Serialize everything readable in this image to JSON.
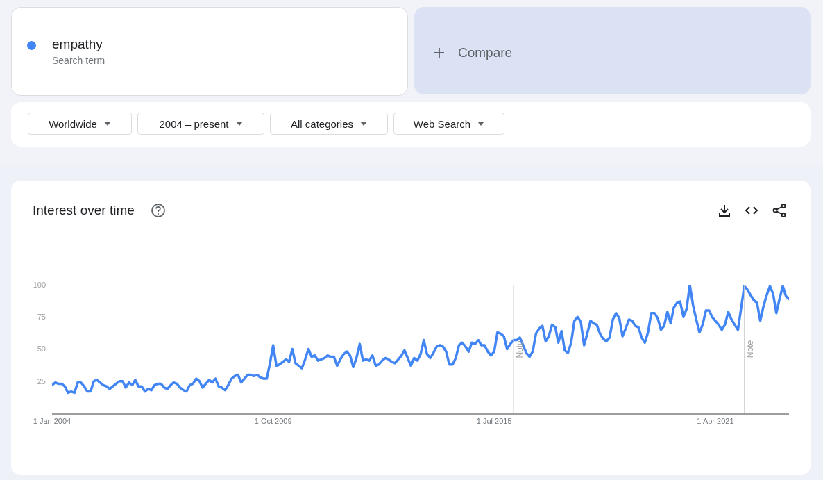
{
  "chart_data": {
    "type": "line",
    "title": "Interest over time",
    "annotations": [
      "Search term",
      "Compare",
      "Worldwide",
      "2004 – present",
      "All categories",
      "Web Search"
    ],
    "legend": "top left",
    "grid": "y",
    "marker": "none",
    "line_style": "solid",
    "xlim": [
      "2004-01-01",
      "2023-03-01"
    ],
    "xticks": [
      {
        "value": "2004-01-01",
        "label": "1 Jan 2004"
      },
      {
        "value": "2009-10-01",
        "label": "1 Oct 2009"
      },
      {
        "value": "2015-07-01",
        "label": "1 Jul 2015"
      },
      {
        "value": "2021-04-01",
        "label": "1 Apr 2021"
      }
    ],
    "ylim": [
      0,
      100
    ],
    "yticks": [
      25,
      50,
      75,
      100
    ],
    "ref_lines": [
      {
        "axis": "x",
        "value": "2016-01-01",
        "label": "Note",
        "color": "#cccccc"
      },
      {
        "axis": "x",
        "value": "2022-01-01",
        "label": "Note",
        "color": "#cccccc"
      }
    ],
    "x": [
      "2004-01",
      "2004-02",
      "2004-03",
      "2004-04",
      "2004-05",
      "2004-06",
      "2004-07",
      "2004-08",
      "2004-09",
      "2004-10",
      "2004-11",
      "2004-12",
      "2005-01",
      "2005-02",
      "2005-03",
      "2005-04",
      "2005-05",
      "2005-06",
      "2005-07",
      "2005-08",
      "2005-09",
      "2005-10",
      "2005-11",
      "2005-12",
      "2006-01",
      "2006-02",
      "2006-03",
      "2006-04",
      "2006-05",
      "2006-06",
      "2006-07",
      "2006-08",
      "2006-09",
      "2006-10",
      "2006-11",
      "2006-12",
      "2007-01",
      "2007-02",
      "2007-03",
      "2007-04",
      "2007-05",
      "2007-06",
      "2007-07",
      "2007-08",
      "2007-09",
      "2007-10",
      "2007-11",
      "2007-12",
      "2008-01",
      "2008-02",
      "2008-03",
      "2008-04",
      "2008-05",
      "2008-06",
      "2008-07",
      "2008-08",
      "2008-09",
      "2008-10",
      "2008-11",
      "2008-12",
      "2009-01",
      "2009-02",
      "2009-03",
      "2009-04",
      "2009-05",
      "2009-06",
      "2009-07",
      "2009-08",
      "2009-09",
      "2009-10",
      "2009-11",
      "2009-12",
      "2010-01",
      "2010-02",
      "2010-03",
      "2010-04",
      "2010-05",
      "2010-06",
      "2010-07",
      "2010-08",
      "2010-09",
      "2010-10",
      "2010-11",
      "2010-12",
      "2011-01",
      "2011-02",
      "2011-03",
      "2011-04",
      "2011-05",
      "2011-06",
      "2011-07",
      "2011-08",
      "2011-09",
      "2011-10",
      "2011-11",
      "2011-12",
      "2012-01",
      "2012-02",
      "2012-03",
      "2012-04",
      "2012-05",
      "2012-06",
      "2012-07",
      "2012-08",
      "2012-09",
      "2012-10",
      "2012-11",
      "2012-12",
      "2013-01",
      "2013-02",
      "2013-03",
      "2013-04",
      "2013-05",
      "2013-06",
      "2013-07",
      "2013-08",
      "2013-09",
      "2013-10",
      "2013-11",
      "2013-12",
      "2014-01",
      "2014-02",
      "2014-03",
      "2014-04",
      "2014-05",
      "2014-06",
      "2014-07",
      "2014-08",
      "2014-09",
      "2014-10",
      "2014-11",
      "2014-12",
      "2015-01",
      "2015-02",
      "2015-03",
      "2015-04",
      "2015-05",
      "2015-06",
      "2015-07",
      "2015-08",
      "2015-09",
      "2015-10",
      "2015-11",
      "2015-12",
      "2016-01",
      "2016-02",
      "2016-03",
      "2016-04",
      "2016-05",
      "2016-06",
      "2016-07",
      "2016-08",
      "2016-09",
      "2016-10",
      "2016-11",
      "2016-12",
      "2017-01",
      "2017-02",
      "2017-03",
      "2017-04",
      "2017-05",
      "2017-06",
      "2017-07",
      "2017-08",
      "2017-09",
      "2017-10",
      "2017-11",
      "2017-12",
      "2018-01",
      "2018-02",
      "2018-03",
      "2018-04",
      "2018-05",
      "2018-06",
      "2018-07",
      "2018-08",
      "2018-09",
      "2018-10",
      "2018-11",
      "2018-12",
      "2019-01",
      "2019-02",
      "2019-03",
      "2019-04",
      "2019-05",
      "2019-06",
      "2019-07",
      "2019-08",
      "2019-09",
      "2019-10",
      "2019-11",
      "2019-12",
      "2020-01",
      "2020-02",
      "2020-03",
      "2020-04",
      "2020-05",
      "2020-06",
      "2020-07",
      "2020-08",
      "2020-09",
      "2020-10",
      "2020-11",
      "2020-12",
      "2021-01",
      "2021-02",
      "2021-03",
      "2021-04",
      "2021-05",
      "2021-06",
      "2021-07",
      "2021-08",
      "2021-09",
      "2021-10",
      "2021-11",
      "2022-01",
      "2022-02",
      "2022-03",
      "2022-04",
      "2022-05",
      "2022-06",
      "2022-07",
      "2022-08",
      "2022-09",
      "2022-10",
      "2022-11",
      "2022-12",
      "2023-01",
      "2023-02",
      "2023-03"
    ],
    "series": [
      {
        "name": "empathy",
        "color": "#4285f4",
        "values": [
          22,
          24,
          23,
          23,
          21,
          16,
          17,
          16,
          24,
          24,
          21,
          17,
          17,
          25,
          26,
          24,
          22,
          21,
          19,
          21,
          23,
          25,
          25,
          20,
          24,
          22,
          26,
          21,
          21,
          17,
          19,
          18,
          22,
          23,
          23,
          20,
          19,
          22,
          24,
          23,
          20,
          18,
          17,
          22,
          23,
          27,
          25,
          20,
          23,
          26,
          24,
          27,
          21,
          20,
          18,
          22,
          27,
          29,
          30,
          24,
          27,
          30,
          30,
          29,
          30,
          28,
          27,
          27,
          39,
          53,
          37,
          38,
          40,
          42,
          40,
          50,
          39,
          37,
          35,
          42,
          50,
          44,
          45,
          41,
          42,
          43,
          45,
          44,
          44,
          37,
          42,
          46,
          48,
          45,
          36,
          43,
          54,
          41,
          42,
          41,
          45,
          37,
          38,
          41,
          43,
          42,
          40,
          39,
          42,
          45,
          49,
          43,
          37,
          43,
          41,
          46,
          57,
          46,
          43,
          47,
          52,
          53,
          52,
          48,
          38,
          38,
          43,
          53,
          55,
          52,
          48,
          55,
          54,
          57,
          53,
          53,
          48,
          45,
          48,
          63,
          62,
          60,
          50,
          54,
          57,
          57,
          59,
          53,
          47,
          44,
          48,
          62,
          66,
          68,
          56,
          60,
          69,
          67,
          55,
          64,
          49,
          47,
          55,
          72,
          75,
          71,
          53,
          62,
          72,
          70,
          69,
          62,
          58,
          56,
          59,
          73,
          78,
          74,
          60,
          66,
          73,
          72,
          68,
          67,
          59,
          55,
          63,
          78,
          78,
          74,
          65,
          68,
          79,
          70,
          82,
          86,
          87,
          75,
          81,
          100,
          84,
          73,
          63,
          69,
          80,
          80,
          75,
          72,
          69,
          65,
          69,
          79,
          73,
          69,
          65,
          99,
          96,
          92,
          88,
          86,
          72,
          83,
          92,
          99,
          93,
          78,
          89,
          99,
          91,
          89
        ]
      }
    ]
  }
}
